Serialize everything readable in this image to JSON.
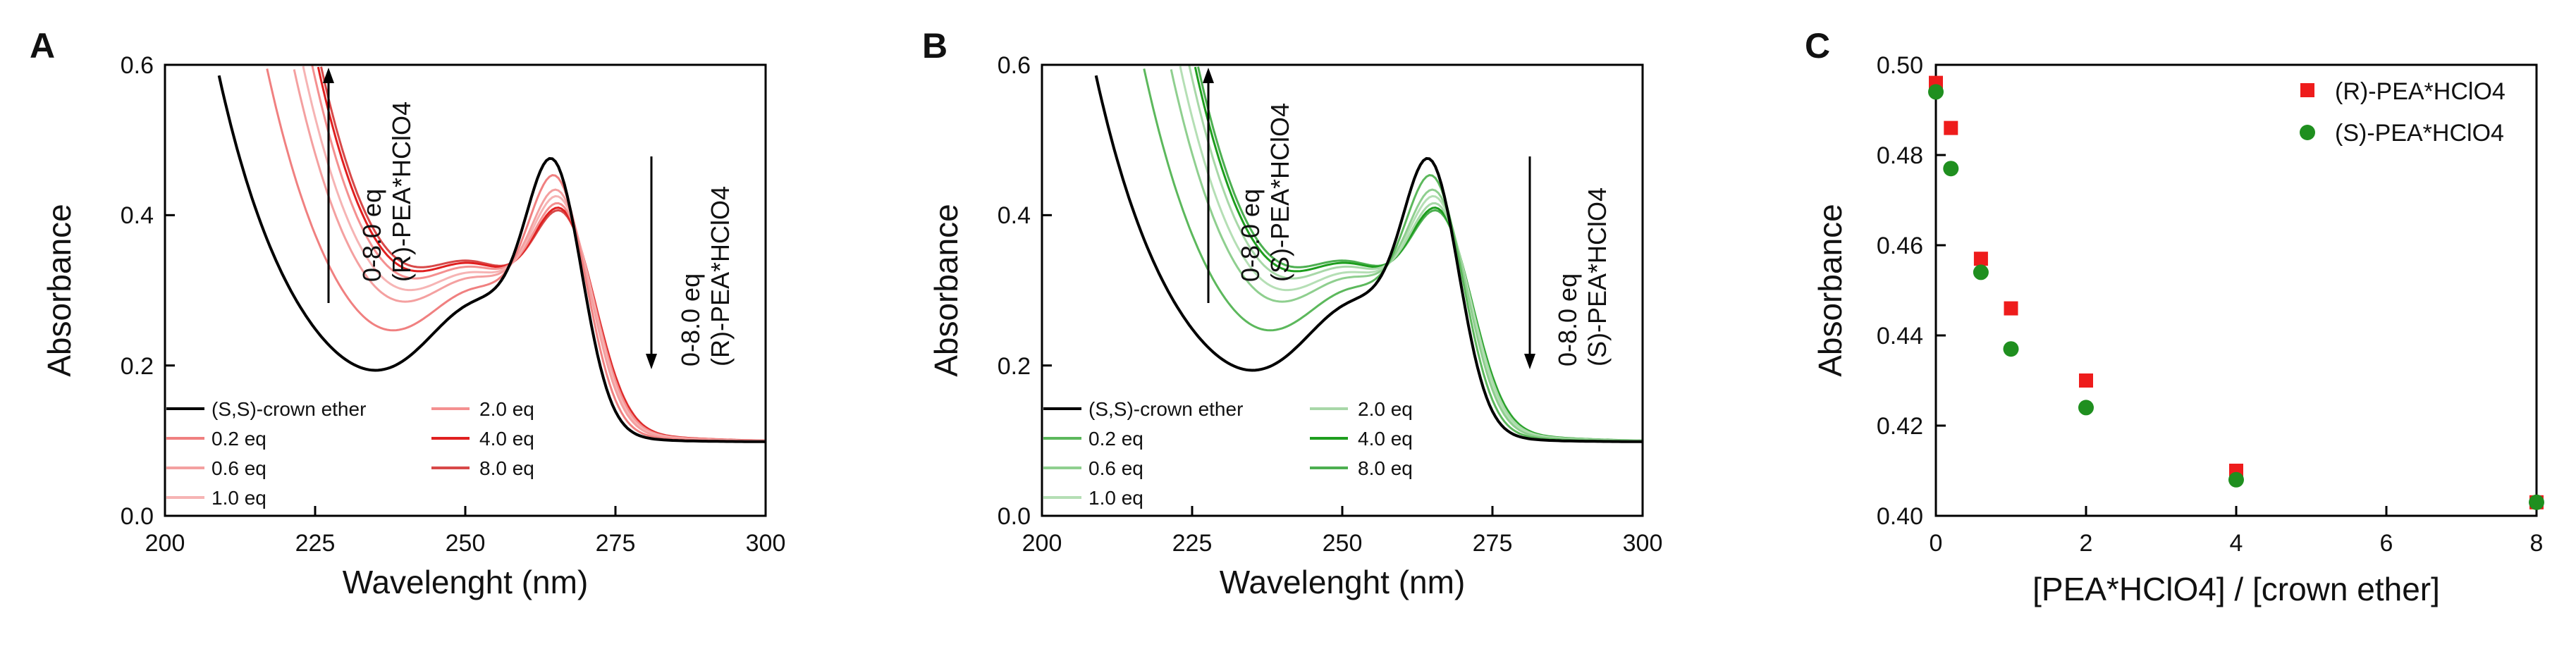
{
  "panels": [
    {
      "letter": "A",
      "chart_data": {
        "type": "line",
        "title": "",
        "xlabel": "Wavelenght (nm)",
        "ylabel": "Absorbance",
        "xlim": [
          200,
          300
        ],
        "ylim": [
          0.0,
          0.6
        ],
        "xticks": [
          "200",
          "225",
          "250",
          "275",
          "300"
        ],
        "yticks": [
          "0.0",
          "0.2",
          "0.4",
          "0.6"
        ],
        "series": [
          {
            "name": "(S,S)-crown ether",
            "eq": 0.0,
            "color": "#000000"
          },
          {
            "name": "0.2 eq",
            "eq": 0.2,
            "color": "#f08080"
          },
          {
            "name": "0.6 eq",
            "eq": 0.6,
            "color": "#f4a0a0"
          },
          {
            "name": "1.0 eq",
            "eq": 1.0,
            "color": "#f6b4b4"
          },
          {
            "name": "2.0 eq",
            "eq": 2.0,
            "color": "#f49090"
          },
          {
            "name": "4.0 eq",
            "eq": 4.0,
            "color": "#e02020"
          },
          {
            "name": "8.0 eq",
            "eq": 8.0,
            "color": "#d84848"
          }
        ],
        "annotations": [
          {
            "line1": "0-8.0 eq",
            "line2": "(R)-PEA*HClO4",
            "direction": "up",
            "region": "short-wavelength"
          },
          {
            "line1": "0-8.0 eq",
            "line2": "(R)-PEA*HClO4",
            "direction": "down",
            "region": "265 nm band"
          }
        ]
      }
    },
    {
      "letter": "B",
      "chart_data": {
        "type": "line",
        "title": "",
        "xlabel": "Wavelenght (nm)",
        "ylabel": "Absorbance",
        "xlim": [
          200,
          300
        ],
        "ylim": [
          0.0,
          0.6
        ],
        "xticks": [
          "200",
          "225",
          "250",
          "275",
          "300"
        ],
        "yticks": [
          "0.0",
          "0.2",
          "0.4",
          "0.6"
        ],
        "series": [
          {
            "name": "(S,S)-crown ether",
            "eq": 0.0,
            "color": "#000000"
          },
          {
            "name": "0.2 eq",
            "eq": 0.2,
            "color": "#5cb85c"
          },
          {
            "name": "0.6 eq",
            "eq": 0.6,
            "color": "#8fcf8f"
          },
          {
            "name": "1.0 eq",
            "eq": 1.0,
            "color": "#b5dfb5"
          },
          {
            "name": "2.0 eq",
            "eq": 2.0,
            "color": "#a8d8a8"
          },
          {
            "name": "4.0 eq",
            "eq": 4.0,
            "color": "#1e9e1e"
          },
          {
            "name": "8.0 eq",
            "eq": 8.0,
            "color": "#4caf50"
          }
        ],
        "annotations": [
          {
            "line1": "0-8.0 eq",
            "line2": "(S)-PEA*HClO4",
            "direction": "up",
            "region": "short-wavelength"
          },
          {
            "line1": "0-8.0 eq",
            "line2": "(S)-PEA*HClO4",
            "direction": "down",
            "region": "265 nm band"
          }
        ]
      }
    },
    {
      "letter": "C",
      "chart_data": {
        "type": "scatter",
        "title": "",
        "xlabel": "[PEA*HClO4] / [crown ether]",
        "ylabel": "Absorbance",
        "xlim": [
          0,
          8
        ],
        "ylim": [
          0.4,
          0.5
        ],
        "xticks": [
          "0",
          "2",
          "4",
          "6",
          "8"
        ],
        "yticks": [
          "0.40",
          "0.42",
          "0.44",
          "0.46",
          "0.48",
          "0.50"
        ],
        "series": [
          {
            "name": "(R)-PEA*HClO4",
            "marker": "square",
            "color": "#ee1c1c",
            "x": [
              0,
              0.2,
              0.6,
              1.0,
              2.0,
              4.0,
              8.0
            ],
            "y": [
              0.496,
              0.486,
              0.457,
              0.446,
              0.43,
              0.41,
              0.403
            ]
          },
          {
            "name": "(S)-PEA*HClO4",
            "marker": "circle",
            "color": "#1f8f1f",
            "x": [
              0,
              0.2,
              0.6,
              1.0,
              2.0,
              4.0,
              8.0
            ],
            "y": [
              0.494,
              0.477,
              0.454,
              0.437,
              0.424,
              0.408,
              0.403
            ]
          }
        ]
      }
    }
  ]
}
